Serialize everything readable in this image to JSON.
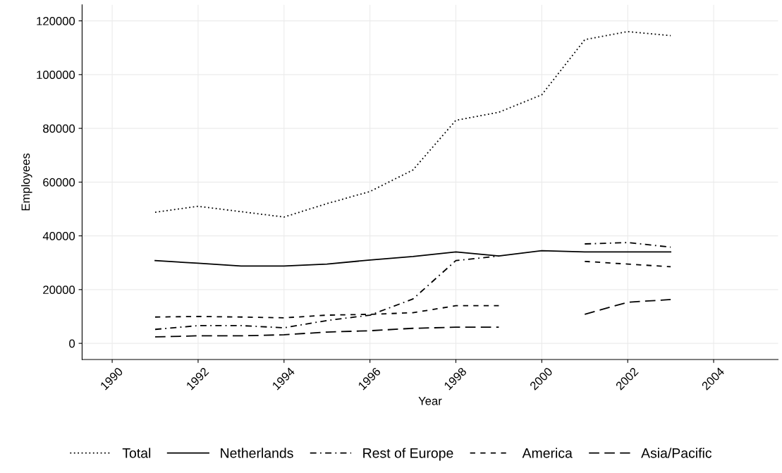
{
  "chart_data": {
    "type": "line",
    "xlabel": "Year",
    "ylabel": "Employees",
    "x": [
      1991,
      1992,
      1993,
      1994,
      1995,
      1996,
      1997,
      1998,
      1999,
      2000,
      2001,
      2002,
      2003
    ],
    "series": [
      {
        "name": "Total",
        "color": "#000000",
        "line_style": "dotted",
        "values": [
          48800,
          51000,
          49000,
          47000,
          52000,
          56500,
          64500,
          83000,
          86000,
          92500,
          113000,
          116000,
          114500
        ]
      },
      {
        "name": "Netherlands",
        "color": "#000000",
        "line_style": "solid",
        "values": [
          30800,
          29800,
          28800,
          28800,
          29500,
          31000,
          32300,
          34000,
          32500,
          34500,
          34000,
          34000,
          34000
        ]
      },
      {
        "name": "Rest of Europe",
        "color": "#000000",
        "line_style": "dashdot",
        "values": [
          5200,
          6600,
          6600,
          5800,
          8500,
          10500,
          16500,
          30800,
          32500,
          null,
          37000,
          37500,
          35800
        ]
      },
      {
        "name": "America",
        "color": "#000000",
        "line_style": "dashed",
        "values": [
          9800,
          10000,
          9800,
          9500,
          10500,
          10800,
          11400,
          14000,
          14000,
          null,
          30500,
          29500,
          28500
        ]
      },
      {
        "name": "Asia/Pacific",
        "color": "#000000",
        "line_style": "longdash",
        "values": [
          2400,
          2800,
          2800,
          3200,
          4200,
          4700,
          5600,
          6000,
          6000,
          null,
          10800,
          15300,
          16300
        ]
      }
    ],
    "xlim": [
      1989.3,
      2005.5
    ],
    "xticks": [
      1990,
      1992,
      1994,
      1996,
      1998,
      2000,
      2002,
      2004
    ],
    "ylim": [
      -6000,
      126000
    ],
    "yticks": [
      0,
      20000,
      40000,
      60000,
      80000,
      100000,
      120000
    ],
    "grid": true,
    "legend": "bottom",
    "marker": "none"
  }
}
